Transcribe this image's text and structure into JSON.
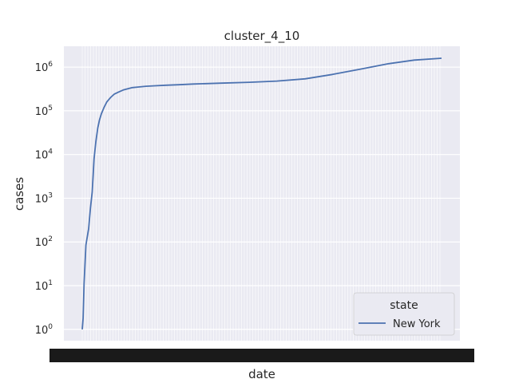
{
  "chart_data": {
    "type": "line",
    "title": "cluster_4_10",
    "xlabel": "date",
    "ylabel": "cases",
    "yscale": "log",
    "ylim": [
      0.55,
      3000000
    ],
    "ytick_values": [
      1,
      10,
      100,
      1000,
      10000,
      100000,
      1000000
    ],
    "ytick_labels": [
      "10^0",
      "10^1",
      "10^2",
      "10^3",
      "10^4",
      "10^5",
      "10^6"
    ],
    "xtick_labels_note": "x tick labels are overlapping dates rendered as an illegible black band",
    "grid": true,
    "legend": {
      "title": "state",
      "placement": "lower-right"
    },
    "line_color": "#4c72b0",
    "x": [
      "2020-03-01",
      "2020-03-02",
      "2020-03-03",
      "2020-03-05",
      "2020-03-08",
      "2020-03-10",
      "2020-03-12",
      "2020-03-14",
      "2020-03-16",
      "2020-03-18",
      "2020-03-20",
      "2020-03-22",
      "2020-03-25",
      "2020-03-28",
      "2020-04-01",
      "2020-04-05",
      "2020-04-10",
      "2020-04-15",
      "2020-04-20",
      "2020-04-25",
      "2020-05-01",
      "2020-05-10",
      "2020-05-20",
      "2020-06-01",
      "2020-06-15",
      "2020-07-01",
      "2020-08-01",
      "2020-09-01",
      "2020-10-01",
      "2020-11-01",
      "2020-12-01",
      "2021-01-01",
      "2021-02-01",
      "2021-03-01",
      "2021-03-31"
    ],
    "series": [
      {
        "name": "New York",
        "values": [
          1,
          1.8,
          11,
          85,
          200,
          600,
          1400,
          8000,
          20000,
          40000,
          62000,
          85000,
          120000,
          160000,
          200000,
          240000,
          270000,
          300000,
          320000,
          340000,
          350000,
          365000,
          375000,
          385000,
          395000,
          410000,
          430000,
          450000,
          480000,
          540000,
          680000,
          900000,
          1200000,
          1450000,
          1600000
        ]
      }
    ]
  }
}
